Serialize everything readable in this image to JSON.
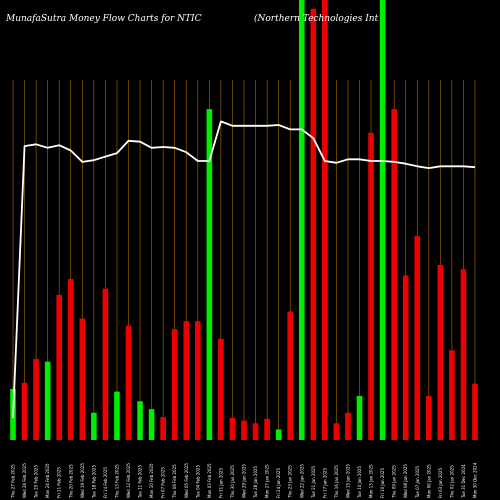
{
  "chart_data": {
    "type": "bar",
    "title": "MunafaSutra  Money Flow  Charts for NTIC",
    "subtitle": "(Northern  Technologies Int",
    "xlabel": "",
    "ylabel": "",
    "ylim": [
      0,
      100
    ],
    "grid": "vertical",
    "categories": [
      "Thu 27 Feb 2025",
      "Wed 26 Feb 2025",
      "Tue 25 Feb 2025",
      "Mon 24 Feb 2025",
      "Fri 21 Feb 2025",
      "Thu 20 Feb 2025",
      "Wed 19 Feb 2025",
      "Tue 18 Feb 2025",
      "Fri 14 Feb 2025",
      "Thu 13 Feb 2025",
      "Wed 12 Feb 2025",
      "Tue 11 Feb 2025",
      "Mon 10 Feb 2025",
      "Fri 07 Feb 2025",
      "Thu 06 Feb 2025",
      "Wed 05 Feb 2025",
      "Tue 04 Feb 2025",
      "Mon 03 Feb 2025",
      "Fri 31 Jan 2025",
      "Thu 30 Jan 2025",
      "Wed 29 Jan 2025",
      "Tue 28 Jan 2025",
      "Mon 27 Jan 2025",
      "Fri 24 Jan 2025",
      "Thu 23 Jan 2025",
      "Wed 22 Jan 2025",
      "Tue 21 Jan 2025",
      "Fri 17 Jan 2025",
      "Thu 16 Jan 2025",
      "Wed 15 Jan 2025",
      "Tue 14 Jan 2025",
      "Mon 13 Jan 2025",
      "Fri 10 Jan 2025",
      "Thu 09 Jan 2025",
      "Wed 08 Jan 2025",
      "Tue 07 Jan 2025",
      "Mon 06 Jan 2025",
      "Fri 03 Jan 2025",
      "Thu 02 Jan 2025",
      "Tue 31 Dec 2024",
      "Mon 30 Dec 2024"
    ],
    "tick_labels": [
      "Thu 27 Feb 2025",
      "Wed 26 Feb 2025",
      "Tue 25 Feb 2025",
      "Mon 24 Feb 2025",
      "Fri 21 Feb 2025",
      "Thu 20 Feb 2025",
      "Wed 19 Feb 2025",
      "Tue 18 Feb 2025",
      "Fri 14 Feb 2025",
      "Thu 13 Feb 2025",
      "Wed 12 Feb 2025",
      "Tue 11 Feb 2025",
      "Mon 10 Feb 2025",
      "Fri 07 Feb 2025",
      "Thu 06 Feb 2025",
      "Wed 05 Feb 2025",
      "Tue 04 Feb 2025",
      "Mon 03 Feb 2025",
      "Fri 31 Jan 2025",
      "Thu 30 Jan 2025",
      "Wed 29 Jan 2025",
      "Tue 28 Jan 2025",
      "Mon 27 Jan 2025",
      "Fri 24 Jan 2025",
      "Thu 23 Jan 2025",
      "Wed 22 Jan 2025",
      "Tue 21 Jan 2025",
      "Fri 17 Jan 2025",
      "Thu 16 Jan 2025",
      "Wed 15 Jan 2025",
      "Tue 14 Jan 2025",
      "Mon 13 Jan 2025",
      "Fri 10 Jan 2025",
      "Thu 09 Jan 2025",
      "Wed 08 Jan 2025",
      "Tue 07 Jan 2025",
      "Mon 06 Jan 2025",
      "Fri 03 Jan 2025",
      "Thu 02 Jan 2025",
      "Tue 31 Dec 2024",
      "Mon 30 Dec 2024"
    ],
    "bar_values": [
      11.6,
      13.0,
      18.4,
      17.8,
      33.0,
      36.6,
      27.6,
      6.2,
      34.4,
      11.0,
      26.0,
      8.8,
      7.0,
      5.2,
      25.2,
      27.0,
      27.0,
      75.2,
      23.0,
      5.0,
      4.4,
      3.8,
      4.8,
      2.4,
      29.2,
      100,
      98.0,
      100,
      3.8,
      6.2,
      10.0,
      69.8,
      100,
      75.2,
      37.4,
      46.4,
      10.0,
      39.8,
      20.4,
      38.8,
      12.8
    ],
    "bar_colors": [
      "green",
      "red",
      "red",
      "green",
      "red",
      "red",
      "red",
      "green",
      "red",
      "green",
      "red",
      "green",
      "green",
      "red",
      "red",
      "red",
      "red",
      "green",
      "red",
      "red",
      "red",
      "red",
      "red",
      "green",
      "red",
      "green",
      "red",
      "red",
      "red",
      "red",
      "green",
      "red",
      "green",
      "red",
      "red",
      "red",
      "red",
      "red",
      "red",
      "red",
      "red"
    ],
    "line_values": [
      5.0,
      66.8,
      67.2,
      66.4,
      67.0,
      65.8,
      63.2,
      63.6,
      64.4,
      65.2,
      68.0,
      67.8,
      66.4,
      66.6,
      66.4,
      65.4,
      63.4,
      63.4,
      72.4,
      71.4,
      71.4,
      71.4,
      71.4,
      71.6,
      70.6,
      70.6,
      68.6,
      63.4,
      63.0,
      63.8,
      63.8,
      63.4,
      63.4,
      63.2,
      62.8,
      62.2,
      61.8,
      62.2,
      62.2,
      62.2,
      62.0
    ],
    "colors": {
      "background": "#000000",
      "positive_bar": "#00ee00",
      "negative_bar": "#ee0000",
      "grid": "#b07000",
      "line": "#ffffff",
      "text": "#ffffff"
    }
  }
}
